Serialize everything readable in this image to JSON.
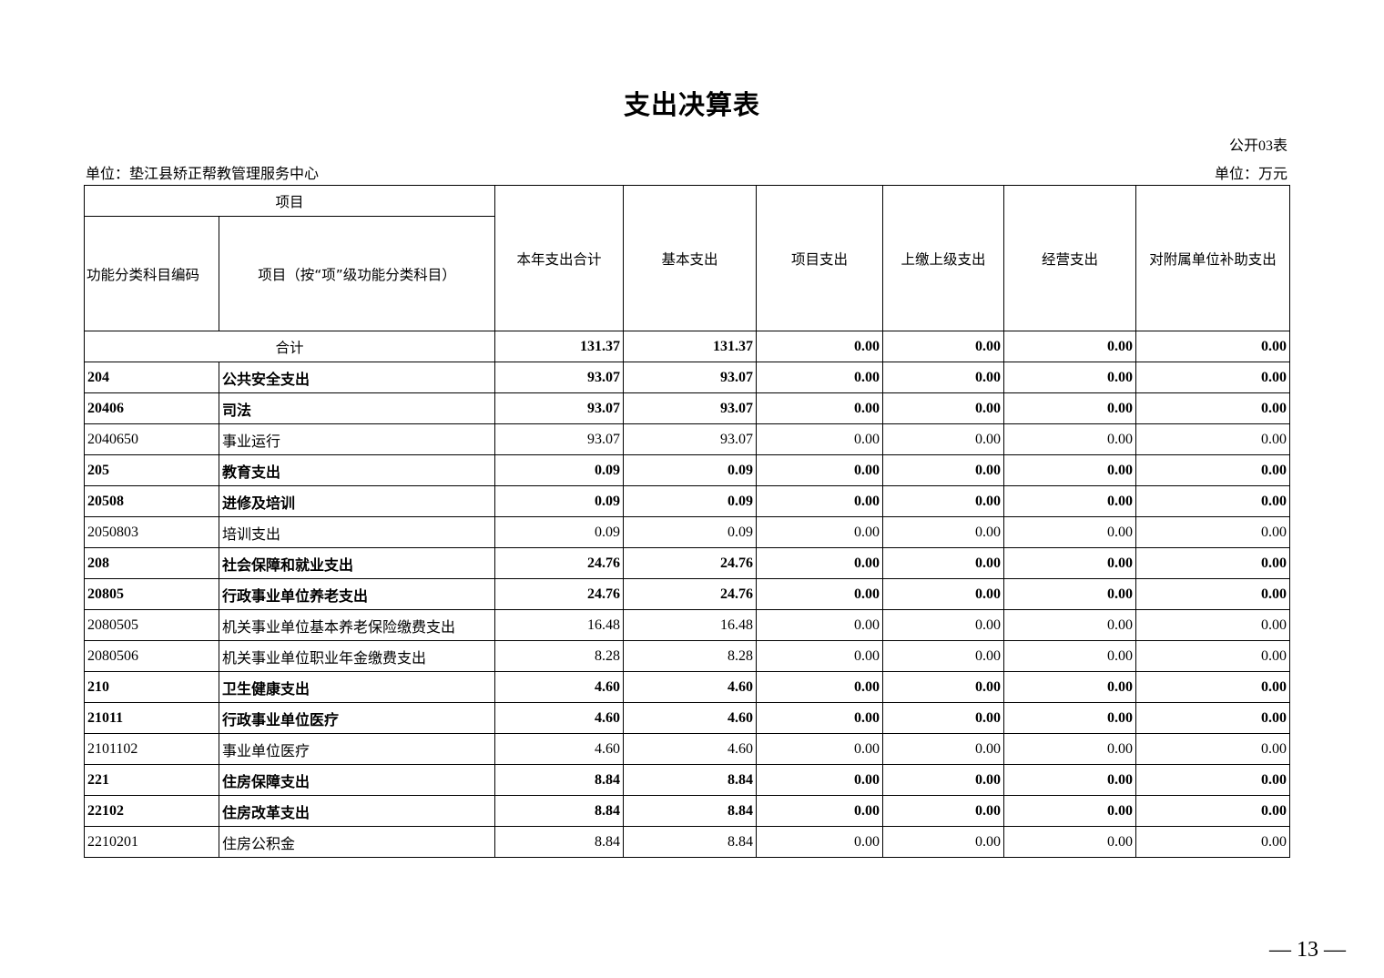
{
  "title": "支出决算表",
  "form_no": "公开03表",
  "unit_org": "单位：垫江县矫正帮教管理服务中心",
  "unit_money": "单位：万元",
  "headers": {
    "item": "项目",
    "code": "功能分类科目编码",
    "name": "项目（按“项”级功能分类科目）",
    "total": "本年支出合计",
    "basic": "基本支出",
    "project": "项目支出",
    "upper": "上缴上级支出",
    "business": "经营支出",
    "subsidy": "对附属单位补助支出"
  },
  "total_row": {
    "label": "合计",
    "values": [
      "131.37",
      "131.37",
      "0.00",
      "0.00",
      "0.00",
      "0.00"
    ]
  },
  "rows": [
    {
      "code": "204",
      "name": "公共安全支出",
      "values": [
        "93.07",
        "93.07",
        "0.00",
        "0.00",
        "0.00",
        "0.00"
      ]
    },
    {
      "code": "20406",
      "name": "司法",
      "values": [
        "93.07",
        "93.07",
        "0.00",
        "0.00",
        "0.00",
        "0.00"
      ]
    },
    {
      "code": "2040650",
      "name": "事业运行",
      "values": [
        "93.07",
        "93.07",
        "0.00",
        "0.00",
        "0.00",
        "0.00"
      ]
    },
    {
      "code": "205",
      "name": "教育支出",
      "values": [
        "0.09",
        "0.09",
        "0.00",
        "0.00",
        "0.00",
        "0.00"
      ]
    },
    {
      "code": "20508",
      "name": "进修及培训",
      "values": [
        "0.09",
        "0.09",
        "0.00",
        "0.00",
        "0.00",
        "0.00"
      ]
    },
    {
      "code": "2050803",
      "name": "培训支出",
      "values": [
        "0.09",
        "0.09",
        "0.00",
        "0.00",
        "0.00",
        "0.00"
      ]
    },
    {
      "code": "208",
      "name": "社会保障和就业支出",
      "values": [
        "24.76",
        "24.76",
        "0.00",
        "0.00",
        "0.00",
        "0.00"
      ]
    },
    {
      "code": "20805",
      "name": "行政事业单位养老支出",
      "values": [
        "24.76",
        "24.76",
        "0.00",
        "0.00",
        "0.00",
        "0.00"
      ]
    },
    {
      "code": "2080505",
      "name": "机关事业单位基本养老保险缴费支出",
      "values": [
        "16.48",
        "16.48",
        "0.00",
        "0.00",
        "0.00",
        "0.00"
      ]
    },
    {
      "code": "2080506",
      "name": "机关事业单位职业年金缴费支出",
      "values": [
        "8.28",
        "8.28",
        "0.00",
        "0.00",
        "0.00",
        "0.00"
      ]
    },
    {
      "code": "210",
      "name": "卫生健康支出",
      "values": [
        "4.60",
        "4.60",
        "0.00",
        "0.00",
        "0.00",
        "0.00"
      ]
    },
    {
      "code": "21011",
      "name": "行政事业单位医疗",
      "values": [
        "4.60",
        "4.60",
        "0.00",
        "0.00",
        "0.00",
        "0.00"
      ]
    },
    {
      "code": "2101102",
      "name": "事业单位医疗",
      "values": [
        "4.60",
        "4.60",
        "0.00",
        "0.00",
        "0.00",
        "0.00"
      ]
    },
    {
      "code": "221",
      "name": "住房保障支出",
      "values": [
        "8.84",
        "8.84",
        "0.00",
        "0.00",
        "0.00",
        "0.00"
      ]
    },
    {
      "code": "22102",
      "name": "住房改革支出",
      "values": [
        "8.84",
        "8.84",
        "0.00",
        "0.00",
        "0.00",
        "0.00"
      ]
    },
    {
      "code": "2210201",
      "name": "住房公积金",
      "values": [
        "8.84",
        "8.84",
        "0.00",
        "0.00",
        "0.00",
        "0.00"
      ]
    }
  ],
  "page_number": "— 13 —"
}
